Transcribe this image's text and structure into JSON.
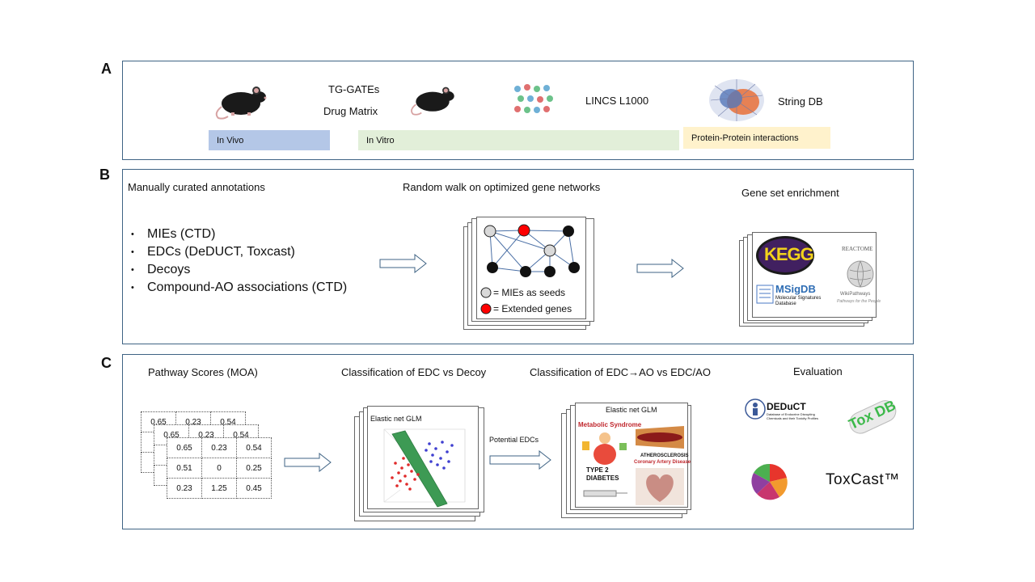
{
  "panel_a": {
    "label": "A",
    "sources_invivo": [
      "TG-GATEs",
      "Drug Matrix"
    ],
    "source_lincs": "LINCS L1000",
    "source_string": "String DB",
    "band_invivo": "In Vivo",
    "band_invitro": "In Vitro",
    "band_ppi": "Protein-Protein interactions",
    "colors": {
      "invivo": "#b4c7e7",
      "invitro": "#e2efd9",
      "ppi": "#fff2cc"
    }
  },
  "panel_b": {
    "label": "B",
    "heading_left": "Manually curated annotations",
    "items": [
      "MIEs (CTD)",
      "EDCs (DeDUCT, Toxcast)",
      "Decoys",
      "Compound-AO associations (CTD)"
    ],
    "heading_mid": "Random walk on optimized gene networks",
    "legend": [
      "= MIEs as seeds",
      "= Extended genes"
    ],
    "heading_right": "Gene set enrichment",
    "db_logos": [
      "KEGG",
      "REACTOME",
      "MSigDB",
      "Molecular Signatures Database",
      "WikiPathways",
      "Pathways for the People"
    ]
  },
  "panel_c": {
    "label": "C",
    "heading_scores": "Pathway Scores (MOA)",
    "score_table": [
      [
        "0.65",
        "0.23",
        "0.54"
      ],
      [
        "0.51",
        "0",
        "0.25"
      ],
      [
        "0.23",
        "1.25",
        "0.45"
      ]
    ],
    "heading_classify1": "Classification of EDC vs Decoy",
    "model_label": "Elastic net GLM",
    "arrow_label": "Potential EDCs",
    "heading_classify2": "Classification of EDC→AO  vs EDC/AO",
    "outcomes": [
      "Metabolic Syndrome",
      "ATHEROSCLEROSIS",
      "Coronary Artery Disease",
      "TYPE 2",
      "DIABETES"
    ],
    "heading_eval": "Evaluation",
    "eval_logos": [
      "DEDuCT",
      "Database of Endocrine Disrupting Chemicals and their Toxicity Profiles",
      "Tox DB",
      "ToxCast™"
    ]
  }
}
